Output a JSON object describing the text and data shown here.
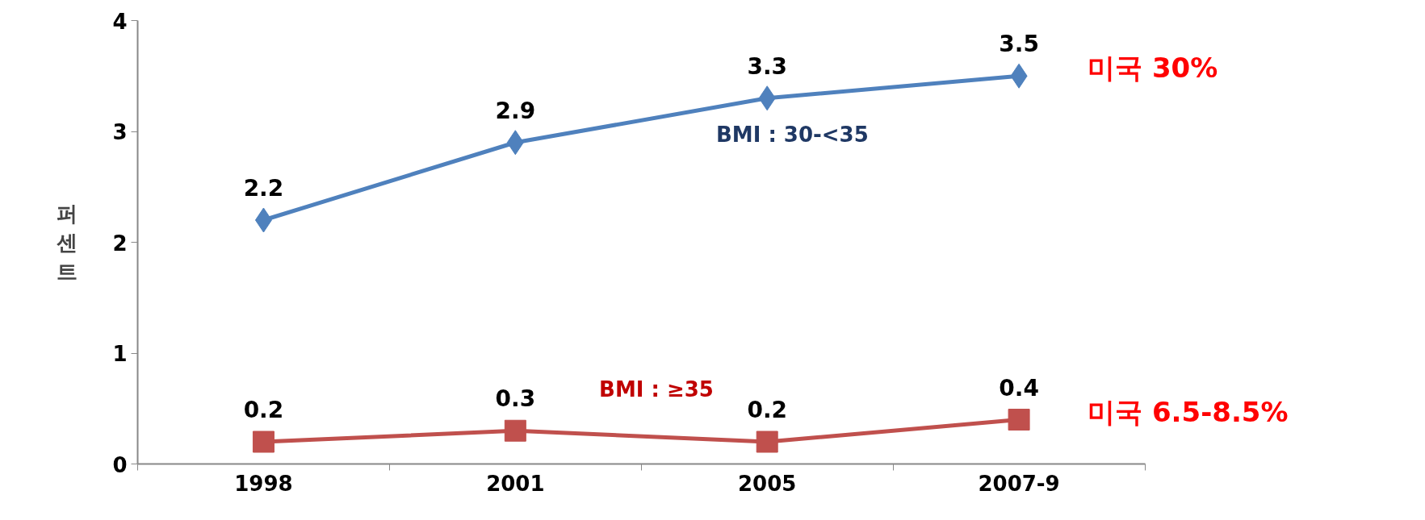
{
  "chart_data": {
    "type": "line",
    "ylabel": "퍼센트",
    "categories": [
      "1998",
      "2001",
      "2005",
      "2007-9"
    ],
    "series": [
      {
        "name": "BMI : 30-<35",
        "color": "#4f81bd",
        "marker": "diamond",
        "values": [
          2.2,
          2.9,
          3.3,
          3.5
        ]
      },
      {
        "name": "BMI : ≥35",
        "color": "#c0504d",
        "marker": "square",
        "values": [
          0.2,
          0.3,
          0.2,
          0.4
        ]
      }
    ],
    "ylim": [
      0,
      4
    ],
    "yticks": [
      0,
      1,
      2,
      3,
      4
    ],
    "data_labels": true,
    "grid": false,
    "line_style": "solid",
    "annotations": [
      {
        "text": "미국 30%",
        "x": "2007-9",
        "y": 3.5
      },
      {
        "text": "미국 6.5-8.5%",
        "x": "2007-9",
        "y": 0.4
      }
    ]
  }
}
